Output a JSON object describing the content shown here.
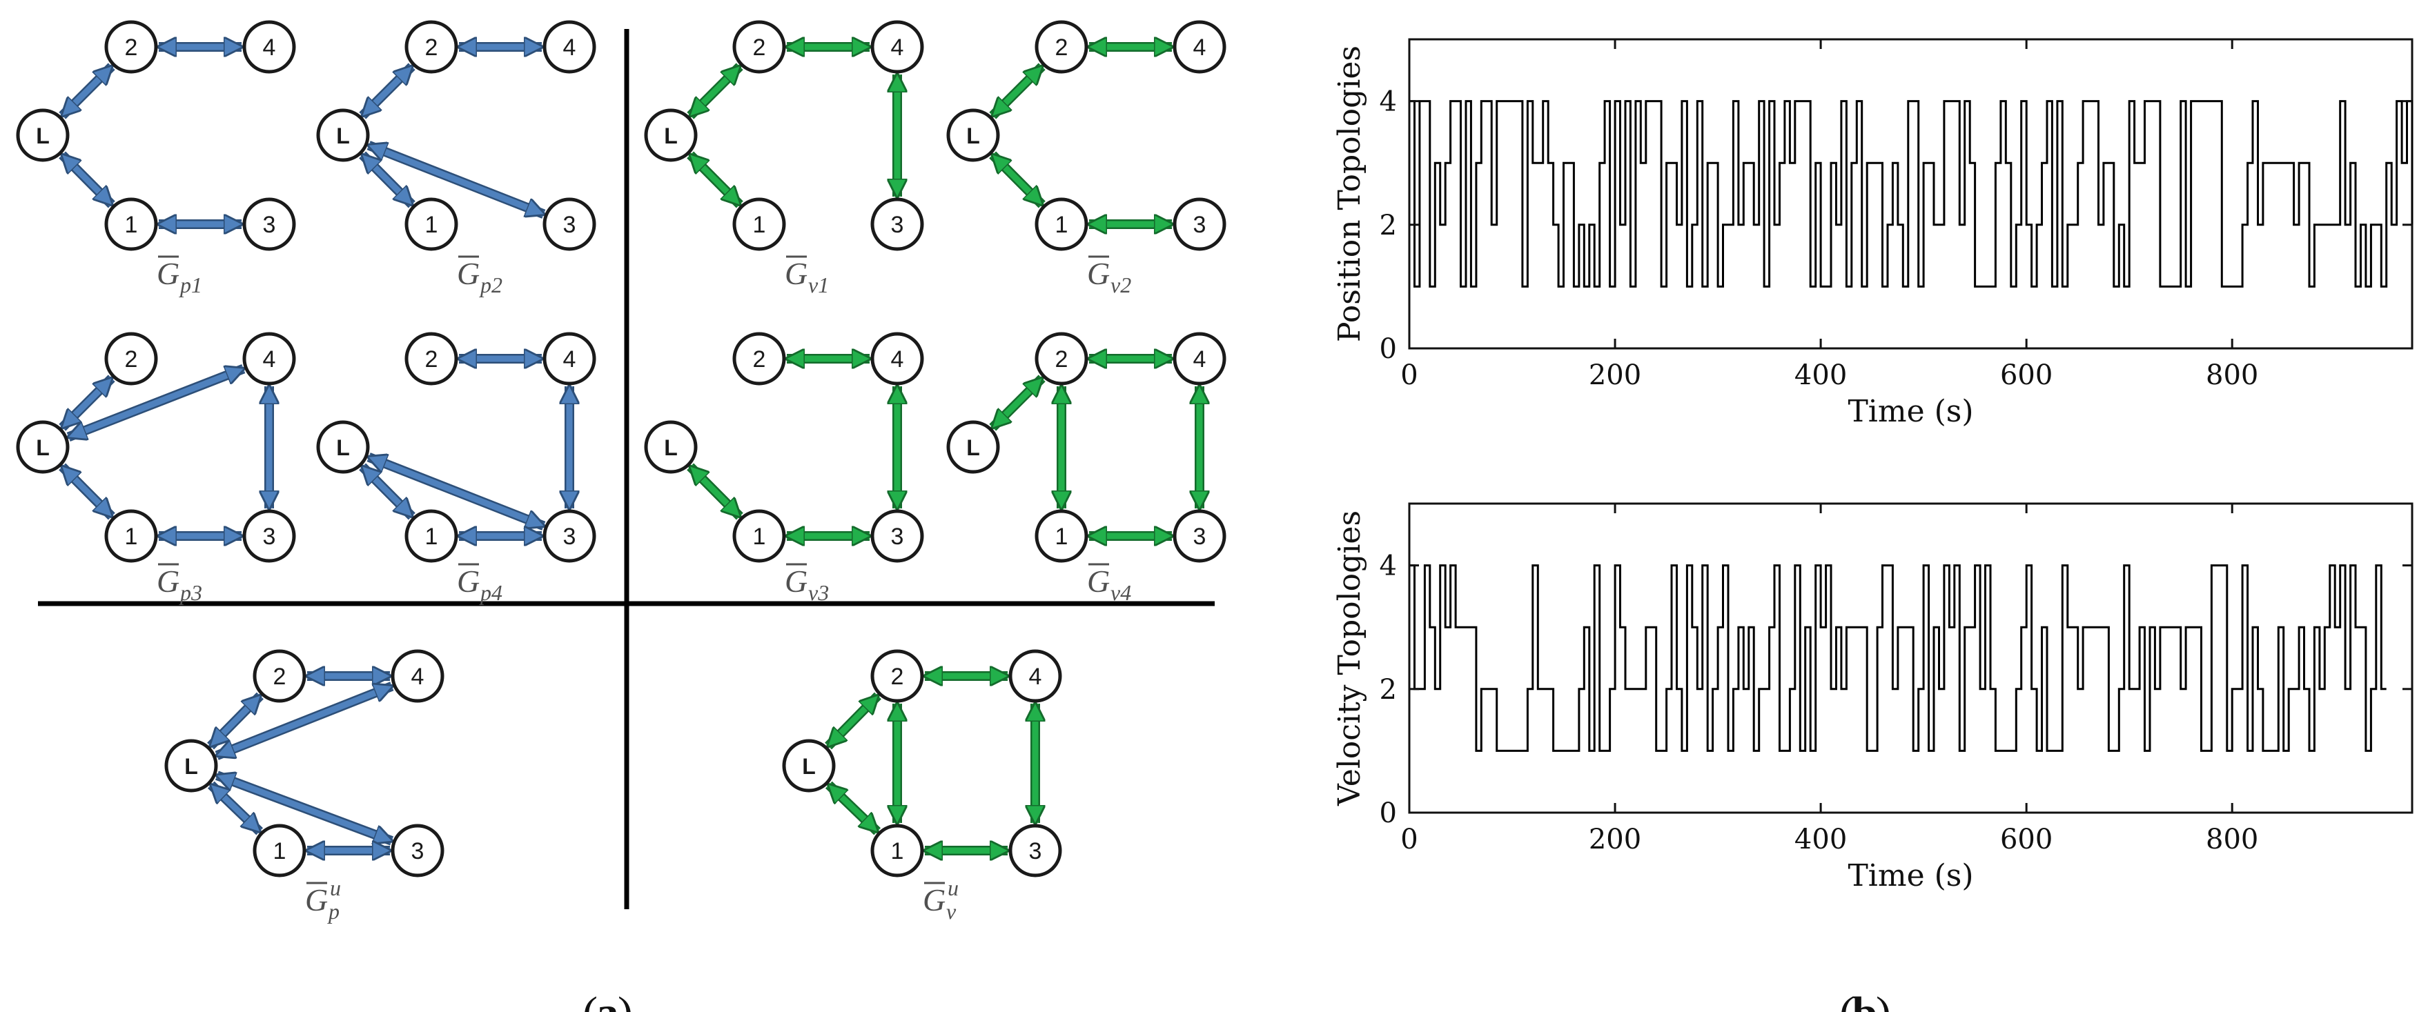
{
  "colors": {
    "position_edge": "#4f81bd",
    "position_edge_stroke": "#2d4f78",
    "velocity_edge": "#22b04b",
    "velocity_edge_stroke": "#146b2c"
  },
  "panel_labels": {
    "a": "a",
    "b": "b"
  },
  "node_labels": {
    "L": "L",
    "n1": "1",
    "n2": "2",
    "n3": "3",
    "n4": "4"
  },
  "graphs": [
    {
      "id": "gp1",
      "base": "G",
      "sub": "p1",
      "sup": "",
      "color": "position",
      "edges": [
        [
          "L",
          "2"
        ],
        [
          "2",
          "4"
        ],
        [
          "L",
          "1"
        ],
        [
          "1",
          "3"
        ]
      ]
    },
    {
      "id": "gp2",
      "base": "G",
      "sub": "p2",
      "sup": "",
      "color": "position",
      "edges": [
        [
          "L",
          "2"
        ],
        [
          "2",
          "4"
        ],
        [
          "L",
          "1"
        ],
        [
          "L",
          "3"
        ]
      ]
    },
    {
      "id": "gv1",
      "base": "G",
      "sub": "v1",
      "sup": "",
      "color": "velocity",
      "edges": [
        [
          "L",
          "2"
        ],
        [
          "2",
          "4"
        ],
        [
          "4",
          "3"
        ],
        [
          "L",
          "1"
        ]
      ]
    },
    {
      "id": "gv2",
      "base": "G",
      "sub": "v2",
      "sup": "",
      "color": "velocity",
      "edges": [
        [
          "L",
          "2"
        ],
        [
          "2",
          "4"
        ],
        [
          "L",
          "1"
        ],
        [
          "1",
          "3"
        ]
      ]
    },
    {
      "id": "gp3",
      "base": "G",
      "sub": "p3",
      "sup": "",
      "color": "position",
      "edges": [
        [
          "L",
          "2"
        ],
        [
          "L",
          "4"
        ],
        [
          "4",
          "3"
        ],
        [
          "L",
          "1"
        ],
        [
          "1",
          "3"
        ]
      ]
    },
    {
      "id": "gp4",
      "base": "G",
      "sub": "p4",
      "sup": "",
      "color": "position",
      "edges": [
        [
          "2",
          "4"
        ],
        [
          "4",
          "3"
        ],
        [
          "L",
          "3"
        ],
        [
          "L",
          "1"
        ],
        [
          "1",
          "3"
        ]
      ]
    },
    {
      "id": "gv3",
      "base": "G",
      "sub": "v3",
      "sup": "",
      "color": "velocity",
      "edges": [
        [
          "2",
          "4"
        ],
        [
          "4",
          "3"
        ],
        [
          "L",
          "1"
        ],
        [
          "1",
          "3"
        ]
      ]
    },
    {
      "id": "gv4",
      "base": "G",
      "sub": "v4",
      "sup": "",
      "color": "velocity",
      "edges": [
        [
          "L",
          "2"
        ],
        [
          "2",
          "4"
        ],
        [
          "2",
          "1"
        ],
        [
          "4",
          "3"
        ],
        [
          "1",
          "3"
        ]
      ]
    },
    {
      "id": "gpu",
      "base": "G",
      "sub": "p",
      "sup": "u",
      "color": "position",
      "edges": [
        [
          "L",
          "2"
        ],
        [
          "2",
          "4"
        ],
        [
          "L",
          "4"
        ],
        [
          "L",
          "3"
        ],
        [
          "L",
          "1"
        ],
        [
          "1",
          "3"
        ]
      ]
    },
    {
      "id": "gvu",
      "base": "G",
      "sub": "v",
      "sup": "u",
      "color": "velocity",
      "edges": [
        [
          "L",
          "2"
        ],
        [
          "2",
          "4"
        ],
        [
          "2",
          "1"
        ],
        [
          "4",
          "3"
        ],
        [
          "L",
          "1"
        ],
        [
          "1",
          "3"
        ]
      ]
    }
  ],
  "chart_data": [
    {
      "type": "line",
      "title": "",
      "xlabel": "Time (s)",
      "ylabel": "Position Topologies",
      "xlim": [
        0,
        975
      ],
      "ylim": [
        0,
        5
      ],
      "xticks": [
        "0",
        "200",
        "400",
        "600",
        "800"
      ],
      "xtick_values": [
        0,
        200,
        400,
        600,
        800
      ],
      "yticks": [
        "0",
        "2",
        "4"
      ],
      "ytick_values": [
        0,
        2,
        4
      ],
      "step": true,
      "dt": 5,
      "y": [
        4,
        1,
        4,
        4,
        1,
        3,
        2,
        3,
        4,
        4,
        1,
        4,
        1,
        3,
        4,
        4,
        2,
        4,
        4,
        4,
        4,
        4,
        1,
        4,
        3,
        3,
        4,
        3,
        2,
        1,
        3,
        3,
        1,
        2,
        1,
        2,
        1,
        3,
        4,
        1,
        4,
        2,
        4,
        1,
        4,
        3,
        4,
        4,
        4,
        1,
        3,
        3,
        2,
        4,
        1,
        2,
        4,
        1,
        3,
        3,
        1,
        2,
        2,
        4,
        2,
        3,
        3,
        2,
        4,
        1,
        4,
        2,
        3,
        4,
        3,
        4,
        4,
        4,
        1,
        3,
        1,
        1,
        3,
        2,
        4,
        1,
        3,
        4,
        1,
        3,
        3,
        3,
        1,
        2,
        3,
        2,
        1,
        4,
        4,
        1,
        3,
        3,
        2,
        2,
        4,
        4,
        4,
        2,
        4,
        3,
        1,
        1,
        1,
        1,
        3,
        4,
        3,
        1,
        2,
        4,
        2,
        1,
        2,
        3,
        4,
        1,
        4,
        1,
        2,
        2,
        3,
        4,
        4,
        4,
        2,
        3,
        3,
        1,
        2,
        1,
        4,
        3,
        3,
        4,
        4,
        4,
        1,
        1,
        1,
        1,
        4,
        1,
        4,
        4,
        4,
        4,
        4,
        4,
        1,
        1,
        1,
        1,
        2,
        3,
        4,
        2,
        3,
        3,
        3,
        3,
        3,
        3,
        2,
        3,
        3,
        1,
        2,
        2,
        2,
        2,
        2,
        4,
        2,
        3,
        1,
        2,
        1,
        2,
        2,
        1,
        3,
        2,
        4,
        3,
        4,
        2
      ]
    },
    {
      "type": "line",
      "title": "",
      "xlabel": "Time (s)",
      "ylabel": "Velocity Topologies",
      "xlim": [
        0,
        975
      ],
      "ylim": [
        0,
        5
      ],
      "xticks": [
        "0",
        "200",
        "400",
        "600",
        "800"
      ],
      "xtick_values": [
        0,
        200,
        400,
        600,
        800
      ],
      "yticks": [
        "0",
        "2",
        "4"
      ],
      "ytick_values": [
        0,
        2,
        4
      ],
      "step": true,
      "dt": 5,
      "y": [
        4,
        2,
        2,
        4,
        3,
        2,
        4,
        3,
        4,
        3,
        3,
        3,
        3,
        1,
        2,
        2,
        2,
        1,
        1,
        1,
        1,
        1,
        1,
        2,
        4,
        2,
        2,
        2,
        1,
        1,
        1,
        1,
        1,
        2,
        3,
        1,
        4,
        1,
        1,
        2,
        4,
        3,
        2,
        2,
        2,
        2,
        3,
        3,
        1,
        1,
        2,
        4,
        2,
        1,
        4,
        3,
        2,
        4,
        1,
        2,
        3,
        4,
        1,
        2,
        3,
        2,
        3,
        1,
        2,
        2,
        3,
        4,
        1,
        1,
        2,
        4,
        1,
        3,
        1,
        4,
        3,
        4,
        2,
        3,
        2,
        3,
        3,
        3,
        3,
        1,
        1,
        3,
        4,
        4,
        2,
        3,
        3,
        3,
        1,
        2,
        4,
        1,
        3,
        2,
        4,
        3,
        4,
        1,
        3,
        3,
        4,
        2,
        4,
        2,
        1,
        1,
        1,
        1,
        2,
        3,
        4,
        2,
        1,
        3,
        1,
        1,
        1,
        4,
        3,
        3,
        2,
        3,
        3,
        3,
        3,
        3,
        1,
        1,
        2,
        4,
        2,
        2,
        3,
        1,
        3,
        2,
        3,
        3,
        3,
        3,
        2,
        3,
        3,
        3,
        1,
        1,
        4,
        4,
        4,
        1,
        2,
        2,
        4,
        1,
        3,
        2,
        1,
        1,
        1,
        3,
        1,
        2,
        2,
        3,
        2,
        1,
        3,
        2,
        3,
        4,
        3,
        4,
        2,
        4,
        3,
        3,
        1,
        2,
        4,
        2
      ]
    }
  ]
}
